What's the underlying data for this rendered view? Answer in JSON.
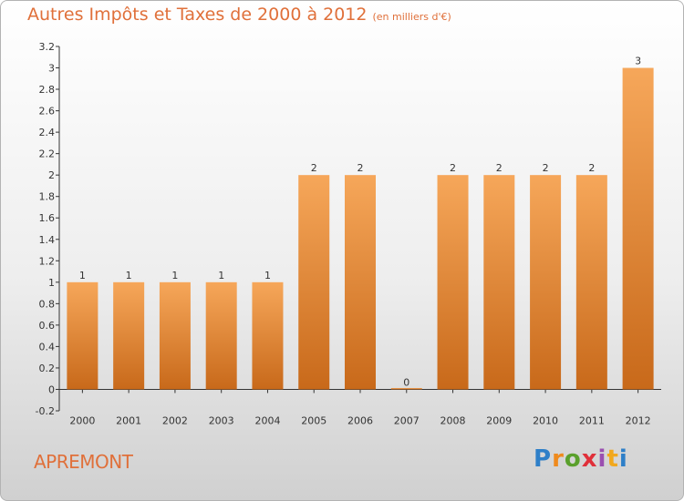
{
  "chart_data": {
    "type": "bar",
    "title": "Autres Impôts et Taxes de 2000 à 2012",
    "subtitle": "(en milliers d'€)",
    "categories": [
      "2000",
      "2001",
      "2002",
      "2003",
      "2004",
      "2005",
      "2006",
      "2007",
      "2008",
      "2009",
      "2010",
      "2011",
      "2012"
    ],
    "values": [
      1,
      1,
      1,
      1,
      1,
      2,
      2,
      0,
      2,
      2,
      2,
      2,
      3
    ],
    "data_labels": [
      "1",
      "1",
      "1",
      "1",
      "1",
      "2",
      "2",
      "0",
      "2",
      "2",
      "2",
      "2",
      "3"
    ],
    "yticks": [
      "3.2",
      "3",
      "2.8",
      "2.6",
      "2.4",
      "2.2",
      "2",
      "1.8",
      "1.6",
      "1.4",
      "1.2",
      "1",
      "0.8",
      "0.6",
      "0.4",
      "0.2",
      "0",
      "-0.2"
    ],
    "ylim": [
      -0.2,
      3.2
    ],
    "grid": false,
    "colors": {
      "bar_top": "#f6a75a",
      "bar_bottom": "#c8691a",
      "title": "#e0703a"
    }
  },
  "commune": "APREMONT",
  "logo": {
    "text": "Proxiti",
    "letters": [
      "P",
      "r",
      "o",
      "x",
      "i",
      "t",
      "i"
    ],
    "colors": [
      "#2e7fc8",
      "#ef8a1c",
      "#5aa02c",
      "#e0303a",
      "#9a4fb0",
      "#f2a81d",
      "#2e7fc8"
    ]
  }
}
